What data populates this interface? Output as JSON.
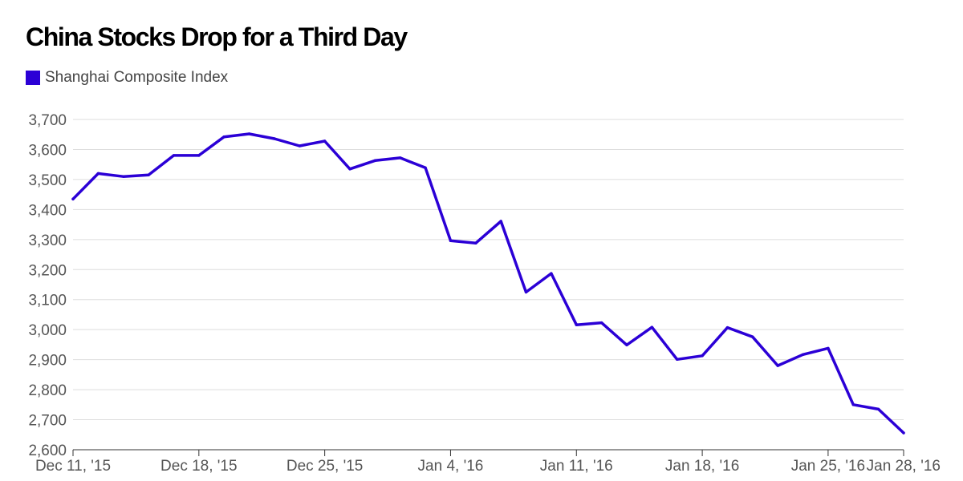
{
  "chart_data": {
    "type": "line",
    "title": "China Stocks Drop for a Third Day",
    "xlabel": "",
    "ylabel": "",
    "ylim": [
      2600,
      3700
    ],
    "yticks": [
      {
        "value": 2600,
        "label": "2,600"
      },
      {
        "value": 2700,
        "label": "2,700"
      },
      {
        "value": 2800,
        "label": "2,800"
      },
      {
        "value": 2900,
        "label": "2,900"
      },
      {
        "value": 3000,
        "label": "3,000"
      },
      {
        "value": 3100,
        "label": "3,100"
      },
      {
        "value": 3200,
        "label": "3,200"
      },
      {
        "value": 3300,
        "label": "3,300"
      },
      {
        "value": 3400,
        "label": "3,400"
      },
      {
        "value": 3500,
        "label": "3,500"
      },
      {
        "value": 3600,
        "label": "3,600"
      },
      {
        "value": 3700,
        "label": "3,700"
      }
    ],
    "xticks": [
      {
        "index": 0,
        "label": "Dec 11, '15"
      },
      {
        "index": 5,
        "label": "Dec 18, '15"
      },
      {
        "index": 10,
        "label": "Dec 25, '15"
      },
      {
        "index": 15,
        "label": "Jan 4, '16"
      },
      {
        "index": 20,
        "label": "Jan 11, '16"
      },
      {
        "index": 25,
        "label": "Jan 18, '16"
      },
      {
        "index": 30,
        "label": "Jan 25, '16"
      },
      {
        "index": 33,
        "label": "Jan 28, '16"
      }
    ],
    "legend_position": "top-left",
    "grid": true,
    "series": [
      {
        "name": "Shanghai Composite Index",
        "color": "#2b00d6",
        "values": [
          3435,
          3520,
          3510,
          3515,
          3580,
          3580,
          3642,
          3652,
          3636,
          3612,
          3628,
          3535,
          3563,
          3572,
          3539,
          3296,
          3288,
          3361,
          3125,
          3187,
          3016,
          3023,
          2949,
          3008,
          2901,
          2913,
          3007,
          2976,
          2880,
          2917,
          2938,
          2750,
          2735,
          2656
        ]
      }
    ]
  }
}
